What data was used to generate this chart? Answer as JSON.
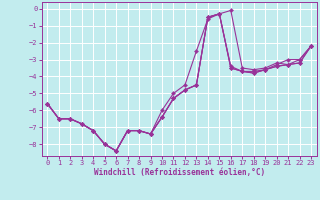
{
  "xlabel": "Windchill (Refroidissement éolien,°C)",
  "background_color": "#c2ecee",
  "line_color": "#993399",
  "grid_color": "#ffffff",
  "xlim": [
    -0.5,
    23.5
  ],
  "ylim": [
    -8.7,
    0.4
  ],
  "xticks": [
    0,
    1,
    2,
    3,
    4,
    5,
    6,
    7,
    8,
    9,
    10,
    11,
    12,
    13,
    14,
    15,
    16,
    17,
    18,
    19,
    20,
    21,
    22,
    23
  ],
  "yticks": [
    0,
    -1,
    -2,
    -3,
    -4,
    -5,
    -6,
    -7,
    -8
  ],
  "hours": [
    0,
    1,
    2,
    3,
    4,
    5,
    6,
    7,
    8,
    9,
    10,
    11,
    12,
    13,
    14,
    15,
    16,
    17,
    18,
    19,
    20,
    21,
    22,
    23
  ],
  "series1": [
    -5.6,
    -6.5,
    -6.5,
    -6.8,
    -7.2,
    -8.0,
    -8.4,
    -7.2,
    -7.2,
    -7.4,
    -6.0,
    -5.0,
    -4.5,
    -2.5,
    -0.6,
    -0.3,
    -0.1,
    -3.5,
    -3.6,
    -3.5,
    -3.2,
    -3.3,
    -3.0,
    -2.2
  ],
  "series2": [
    -5.6,
    -6.5,
    -6.5,
    -6.8,
    -7.2,
    -8.0,
    -8.4,
    -7.2,
    -7.2,
    -7.4,
    -6.4,
    -5.3,
    -4.8,
    -4.5,
    -0.5,
    -0.3,
    -3.4,
    -3.7,
    -3.7,
    -3.6,
    -3.3,
    -3.0,
    -3.0,
    -2.2
  ],
  "series3": [
    -5.6,
    -6.5,
    -6.5,
    -6.8,
    -7.2,
    -8.0,
    -8.4,
    -7.2,
    -7.2,
    -7.4,
    -6.4,
    -5.3,
    -4.8,
    -4.5,
    -0.5,
    -0.3,
    -3.5,
    -3.7,
    -3.8,
    -3.6,
    -3.4,
    -3.3,
    -3.2,
    -2.2
  ],
  "series4": [
    -5.6,
    -6.5,
    -6.5,
    -6.8,
    -7.2,
    -8.0,
    -8.4,
    -7.2,
    -7.2,
    -7.4,
    -6.4,
    -5.3,
    -4.8,
    -4.5,
    -0.5,
    -0.3,
    -3.5,
    -3.7,
    -3.8,
    -3.6,
    -3.4,
    -3.3,
    -3.2,
    -2.2
  ]
}
